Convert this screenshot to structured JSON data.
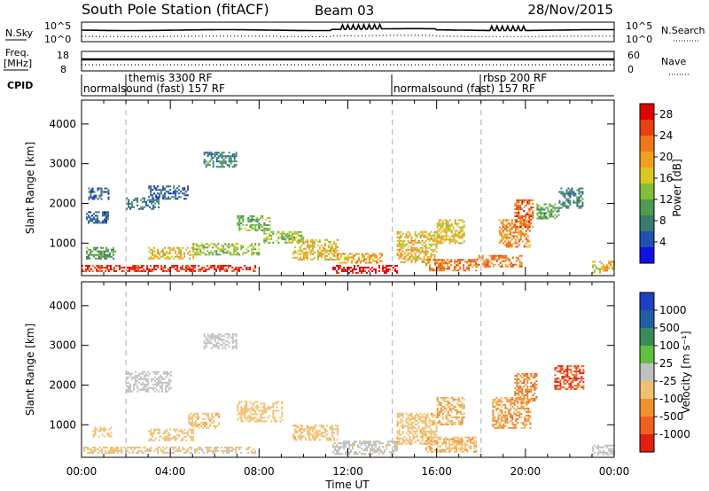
{
  "header": {
    "station": "South Pole Station (fitACF)",
    "beam": "Beam 03",
    "date": "28/Nov/2015"
  },
  "top_panels": {
    "nsky_label": "N.Sky",
    "nsearch_label": "N.Search",
    "noise_ticks": [
      "10^5",
      "10^0"
    ],
    "freq_label_line1": "Freq.",
    "freq_label_line2": "[MHz]",
    "freq_ticks": [
      "18",
      "8"
    ],
    "nave_label": "Nave",
    "nave_ticks": [
      "60",
      "0"
    ],
    "cpid_label": "CPID",
    "cpid_entries": [
      {
        "name": "normalsound (fast) 157 RF",
        "start_hour": 0
      },
      {
        "name": "themis 3300 RF",
        "start_hour": 2
      },
      {
        "name": "normalsound (fast) 157 RF",
        "start_hour": 14
      },
      {
        "name": "rbsp 200 RF",
        "start_hour": 18
      }
    ]
  },
  "chart_data": [
    {
      "type": "heatmap",
      "parameter": "Power",
      "ylabel": "Slant Range [km]",
      "xlabel": "",
      "x_ticks": [
        "00:00",
        "04:00",
        "08:00",
        "12:00",
        "16:00",
        "20:00",
        "00:00"
      ],
      "xlim_hours": [
        0,
        24
      ],
      "y_ticks": [
        1000,
        2000,
        3000,
        4000
      ],
      "ylim": [
        180,
        4600
      ],
      "colorbar": {
        "label": "Power [dB]",
        "ticks": [
          "4",
          "8",
          "12",
          "16",
          "20",
          "24",
          "28"
        ],
        "range": [
          0,
          30
        ],
        "colors": [
          "#1010e0",
          "#2050b0",
          "#3b7a6e",
          "#4e9a50",
          "#7fbf3a",
          "#d8c820",
          "#f0a020",
          "#f07818",
          "#e84010",
          "#e00000"
        ]
      },
      "dashed_lines_hours": [
        2,
        14,
        18
      ],
      "echo_regions": [
        {
          "t": [
            0.0,
            1.8
          ],
          "r": [
            300,
            450
          ],
          "value": 26
        },
        {
          "t": [
            0.2,
            1.5
          ],
          "r": [
            600,
            900
          ],
          "value": 10
        },
        {
          "t": [
            0.2,
            1.2
          ],
          "r": [
            1500,
            1800
          ],
          "value": 6
        },
        {
          "t": [
            0.3,
            1.2
          ],
          "r": [
            2100,
            2400
          ],
          "value": 5
        },
        {
          "t": [
            1.8,
            7.8
          ],
          "r": [
            300,
            450
          ],
          "value": 27
        },
        {
          "t": [
            2.0,
            3.5
          ],
          "r": [
            1850,
            2150
          ],
          "value": 7
        },
        {
          "t": [
            3.0,
            4.8
          ],
          "r": [
            2100,
            2450
          ],
          "value": 6
        },
        {
          "t": [
            3.0,
            5.0
          ],
          "r": [
            600,
            900
          ],
          "value": 18
        },
        {
          "t": [
            5.0,
            8.0
          ],
          "r": [
            700,
            1000
          ],
          "value": 14
        },
        {
          "t": [
            5.5,
            7.0
          ],
          "r": [
            2900,
            3300
          ],
          "value": 8
        },
        {
          "t": [
            7.0,
            8.5
          ],
          "r": [
            1300,
            1700
          ],
          "value": 12
        },
        {
          "t": [
            8.2,
            10.0
          ],
          "r": [
            1000,
            1300
          ],
          "value": 13
        },
        {
          "t": [
            9.5,
            11.5
          ],
          "r": [
            600,
            1100
          ],
          "value": 18
        },
        {
          "t": [
            11.3,
            14.2
          ],
          "r": [
            250,
            450
          ],
          "value": 29
        },
        {
          "t": [
            11.5,
            13.5
          ],
          "r": [
            500,
            750
          ],
          "value": 20
        },
        {
          "t": [
            14.2,
            16.0
          ],
          "r": [
            500,
            1300
          ],
          "value": 18
        },
        {
          "t": [
            15.5,
            17.8
          ],
          "r": [
            300,
            600
          ],
          "value": 22
        },
        {
          "t": [
            16.0,
            17.2
          ],
          "r": [
            1000,
            1600
          ],
          "value": 17
        },
        {
          "t": [
            17.8,
            19.8
          ],
          "r": [
            400,
            700
          ],
          "value": 23
        },
        {
          "t": [
            18.8,
            20.2
          ],
          "r": [
            900,
            1600
          ],
          "value": 21
        },
        {
          "t": [
            19.5,
            20.3
          ],
          "r": [
            1400,
            2100
          ],
          "value": 24
        },
        {
          "t": [
            20.5,
            21.5
          ],
          "r": [
            1600,
            2000
          ],
          "value": 11
        },
        {
          "t": [
            21.5,
            22.6
          ],
          "r": [
            1900,
            2400
          ],
          "value": 8
        },
        {
          "t": [
            23.0,
            24.0
          ],
          "r": [
            250,
            550
          ],
          "value": 18
        }
      ]
    },
    {
      "type": "heatmap",
      "parameter": "Velocity",
      "ylabel": "Slant Range [km]",
      "xlabel": "Time UT",
      "x_ticks": [
        "00:00",
        "04:00",
        "08:00",
        "12:00",
        "16:00",
        "20:00",
        "00:00"
      ],
      "xlim_hours": [
        0,
        24
      ],
      "y_ticks": [
        1000,
        2000,
        3000,
        4000
      ],
      "ylim": [
        180,
        4600
      ],
      "colorbar": {
        "label": "Velocity [m s⁻¹]",
        "ticks": [
          "1000",
          "500",
          "100",
          "25",
          "-25",
          "-100",
          "-500",
          "-1000"
        ],
        "range": [
          -1200,
          1200
        ],
        "colors": [
          "#2040c0",
          "#2060a0",
          "#3a8a5a",
          "#60c040",
          "#c0c0c0",
          "#f0c070",
          "#f09030",
          "#f06020",
          "#e02010"
        ]
      },
      "dashed_lines_hours": [
        2,
        14,
        18
      ],
      "echo_regions": [
        {
          "t": [
            0.0,
            1.8
          ],
          "r": [
            300,
            450
          ],
          "value": -180
        },
        {
          "t": [
            0.5,
            1.3
          ],
          "r": [
            700,
            950
          ],
          "value": -250
        },
        {
          "t": [
            1.8,
            7.8
          ],
          "r": [
            300,
            450
          ],
          "value": -160
        },
        {
          "t": [
            2.0,
            4.0
          ],
          "r": [
            1850,
            2350
          ],
          "value": 0
        },
        {
          "t": [
            3.0,
            5.0
          ],
          "r": [
            600,
            900
          ],
          "value": -200
        },
        {
          "t": [
            4.8,
            6.2
          ],
          "r": [
            900,
            1300
          ],
          "value": -300
        },
        {
          "t": [
            5.5,
            7.0
          ],
          "r": [
            2900,
            3300
          ],
          "value": 0
        },
        {
          "t": [
            7.0,
            9.0
          ],
          "r": [
            1100,
            1600
          ],
          "value": -250
        },
        {
          "t": [
            9.5,
            11.5
          ],
          "r": [
            600,
            1000
          ],
          "value": -300
        },
        {
          "t": [
            11.3,
            14.2
          ],
          "r": [
            250,
            600
          ],
          "value": -80
        },
        {
          "t": [
            14.2,
            16.0
          ],
          "r": [
            500,
            1300
          ],
          "value": -300
        },
        {
          "t": [
            15.5,
            17.8
          ],
          "r": [
            300,
            700
          ],
          "value": -350
        },
        {
          "t": [
            16.0,
            17.2
          ],
          "r": [
            1000,
            1700
          ],
          "value": -400
        },
        {
          "t": [
            18.5,
            20.2
          ],
          "r": [
            900,
            1700
          ],
          "value": -500
        },
        {
          "t": [
            19.5,
            20.5
          ],
          "r": [
            1600,
            2300
          ],
          "value": -600
        },
        {
          "t": [
            21.3,
            22.6
          ],
          "r": [
            1900,
            2500
          ],
          "value": -900
        },
        {
          "t": [
            23.0,
            24.0
          ],
          "r": [
            250,
            500
          ],
          "value": 0
        }
      ]
    }
  ]
}
